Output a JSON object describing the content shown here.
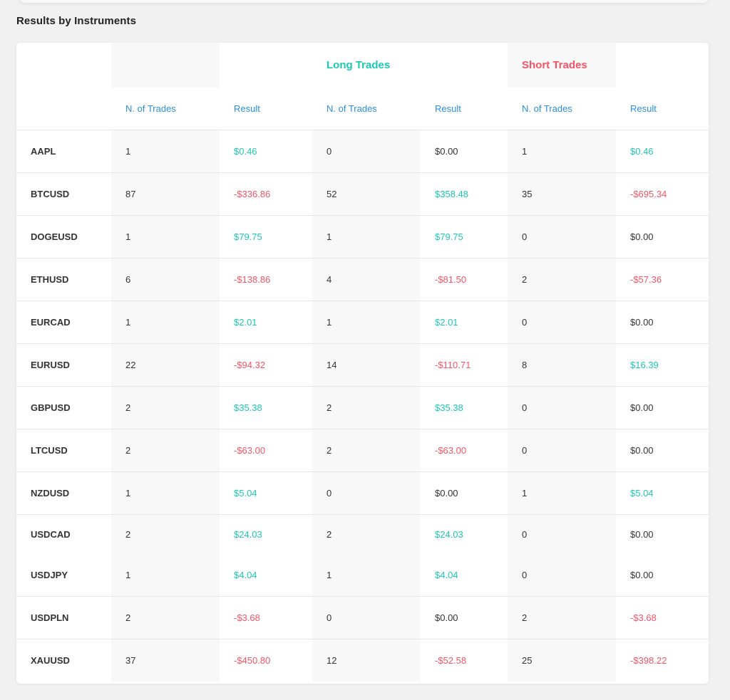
{
  "section": {
    "title": "Results by Instruments"
  },
  "groups": {
    "long": "Long Trades",
    "short": "Short Trades"
  },
  "columns": {
    "n_trades": "N. of Trades",
    "result": "Result"
  },
  "colors": {
    "positive": "#1cc8b4",
    "negative": "#f45566",
    "header": "#2a8fe0"
  },
  "rows": [
    {
      "instrument": "AAPL",
      "total_n": "1",
      "total_res": "$0.46",
      "total_sign": "pos",
      "long_n": "0",
      "long_res": "$0.00",
      "long_sign": "zero",
      "short_n": "1",
      "short_res": "$0.46",
      "short_sign": "pos"
    },
    {
      "instrument": "BTCUSD",
      "total_n": "87",
      "total_res": "-$336.86",
      "total_sign": "neg",
      "long_n": "52",
      "long_res": "$358.48",
      "long_sign": "pos",
      "short_n": "35",
      "short_res": "-$695.34",
      "short_sign": "neg"
    },
    {
      "instrument": "DOGEUSD",
      "total_n": "1",
      "total_res": "$79.75",
      "total_sign": "pos",
      "long_n": "1",
      "long_res": "$79.75",
      "long_sign": "pos",
      "short_n": "0",
      "short_res": "$0.00",
      "short_sign": "zero"
    },
    {
      "instrument": "ETHUSD",
      "total_n": "6",
      "total_res": "-$138.86",
      "total_sign": "neg",
      "long_n": "4",
      "long_res": "-$81.50",
      "long_sign": "neg",
      "short_n": "2",
      "short_res": "-$57.36",
      "short_sign": "neg"
    },
    {
      "instrument": "EURCAD",
      "total_n": "1",
      "total_res": "$2.01",
      "total_sign": "pos",
      "long_n": "1",
      "long_res": "$2.01",
      "long_sign": "pos",
      "short_n": "0",
      "short_res": "$0.00",
      "short_sign": "zero"
    },
    {
      "instrument": "EURUSD",
      "total_n": "22",
      "total_res": "-$94.32",
      "total_sign": "neg",
      "long_n": "14",
      "long_res": "-$110.71",
      "long_sign": "neg",
      "short_n": "8",
      "short_res": "$16.39",
      "short_sign": "pos"
    },
    {
      "instrument": "GBPUSD",
      "total_n": "2",
      "total_res": "$35.38",
      "total_sign": "pos",
      "long_n": "2",
      "long_res": "$35.38",
      "long_sign": "pos",
      "short_n": "0",
      "short_res": "$0.00",
      "short_sign": "zero"
    },
    {
      "instrument": "LTCUSD",
      "total_n": "2",
      "total_res": "-$63.00",
      "total_sign": "neg",
      "long_n": "2",
      "long_res": "-$63.00",
      "long_sign": "neg",
      "short_n": "0",
      "short_res": "$0.00",
      "short_sign": "zero"
    },
    {
      "instrument": "NZDUSD",
      "total_n": "1",
      "total_res": "$5.04",
      "total_sign": "pos",
      "long_n": "0",
      "long_res": "$0.00",
      "long_sign": "zero",
      "short_n": "1",
      "short_res": "$5.04",
      "short_sign": "pos"
    },
    {
      "instrument": "USDCAD",
      "total_n": "2",
      "total_res": "$24.03",
      "total_sign": "pos",
      "long_n": "2",
      "long_res": "$24.03",
      "long_sign": "pos",
      "short_n": "0",
      "short_res": "$0.00",
      "short_sign": "zero"
    },
    {
      "instrument": "USDJPY",
      "total_n": "1",
      "total_res": "$4.04",
      "total_sign": "pos",
      "long_n": "1",
      "long_res": "$4.04",
      "long_sign": "pos",
      "short_n": "0",
      "short_res": "$0.00",
      "short_sign": "zero"
    },
    {
      "instrument": "USDPLN",
      "total_n": "2",
      "total_res": "-$3.68",
      "total_sign": "neg",
      "long_n": "0",
      "long_res": "$0.00",
      "long_sign": "zero",
      "short_n": "2",
      "short_res": "-$3.68",
      "short_sign": "neg"
    },
    {
      "instrument": "XAUUSD",
      "total_n": "37",
      "total_res": "-$450.80",
      "total_sign": "neg",
      "long_n": "12",
      "long_res": "-$52.58",
      "long_sign": "neg",
      "short_n": "25",
      "short_res": "-$398.22",
      "short_sign": "neg"
    }
  ]
}
